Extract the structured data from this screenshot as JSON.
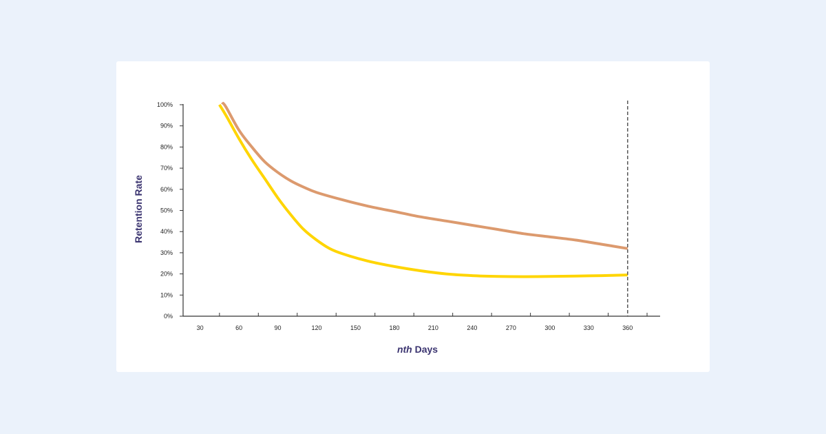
{
  "chart_data": {
    "type": "line",
    "title": "",
    "xlabel_italic": "nth",
    "xlabel_rest": " Days",
    "ylabel": "Retention Rate",
    "xlim": [
      30,
      370
    ],
    "ylim": [
      0,
      100
    ],
    "x_ticks": [
      30,
      60,
      90,
      120,
      150,
      180,
      210,
      240,
      270,
      300,
      330,
      360
    ],
    "x_tick_labels": [
      "30",
      "60",
      "90",
      "120",
      "150",
      "180",
      "210",
      "240",
      "270",
      "300",
      "330",
      "360"
    ],
    "y_ticks": [
      0,
      10,
      20,
      30,
      40,
      50,
      60,
      70,
      80,
      90,
      100
    ],
    "y_tick_labels": [
      "0%",
      "10%",
      "20%",
      "30%",
      "40%",
      "50%",
      "60%",
      "70%",
      "80%",
      "90%",
      "100%"
    ],
    "reference_line": {
      "x": 360,
      "style": "dashed",
      "color": "#555555"
    },
    "grid": false,
    "legend": "none",
    "series": [
      {
        "color": "#dc9a6e",
        "x": [
          47,
          50,
          60,
          70,
          80,
          90,
          100,
          110,
          120,
          140,
          160,
          180,
          200,
          220,
          240,
          260,
          280,
          300,
          320,
          340,
          360
        ],
        "y": [
          101,
          99,
          88,
          80,
          73,
          68,
          64,
          61,
          58.5,
          55,
          52,
          49.5,
          47,
          45,
          43,
          41,
          39,
          37.5,
          36,
          34,
          32
        ]
      },
      {
        "color": "#ffd500",
        "x": [
          45,
          50,
          60,
          70,
          80,
          90,
          100,
          110,
          120,
          130,
          140,
          160,
          180,
          200,
          220,
          240,
          260,
          280,
          300,
          320,
          340,
          360
        ],
        "y": [
          100,
          95,
          84,
          74,
          65,
          56,
          48,
          41,
          36,
          32,
          29.5,
          26,
          23.5,
          21.5,
          20,
          19.2,
          18.8,
          18.7,
          18.8,
          19,
          19.2,
          19.5
        ]
      }
    ]
  }
}
